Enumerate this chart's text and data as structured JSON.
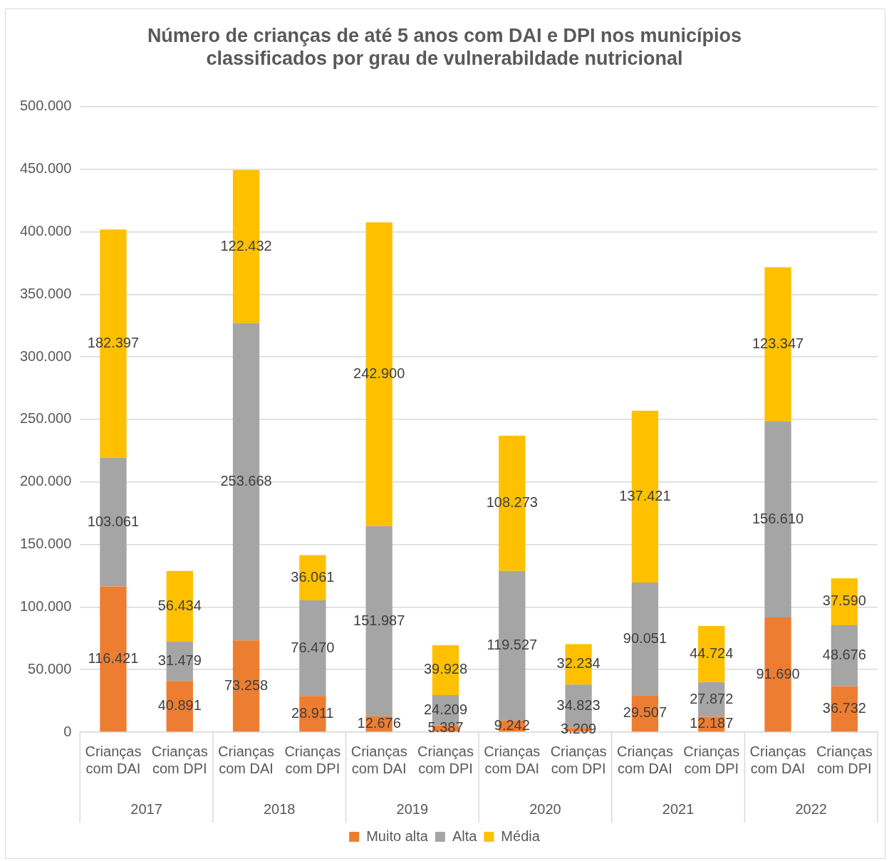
{
  "chart_data": {
    "type": "bar",
    "title": "Número de crianças de até 5 anos com DAI e DPI nos municípios classificados por grau de vulnerabildade nutricional",
    "categories": [
      "Crianças com DAI",
      "Crianças com DPI",
      "Crianças com DAI",
      "Crianças com DPI",
      "Crianças com DAI",
      "Crianças com DPI",
      "Crianças com DAI",
      "Crianças com DPI",
      "Crianças com DAI",
      "Crianças com DPI",
      "Crianças com DAI",
      "Crianças com DPI"
    ],
    "annotations": [
      "2017",
      "2018",
      "2019",
      "2020",
      "2021",
      "2022"
    ],
    "stacked": true,
    "series": [
      {
        "name": "Muito alta",
        "color": "#ed7d31",
        "values": [
          116421,
          40891,
          73258,
          28911,
          12676,
          5387,
          9242,
          3209,
          29507,
          12187,
          91690,
          36732
        ],
        "value_labels": [
          "116.421",
          "40.891",
          "73.258",
          "28.911",
          "12.676",
          "5.387",
          "9.242",
          "3.209",
          "29.507",
          "12.187",
          "91.690",
          "36.732"
        ]
      },
      {
        "name": "Alta",
        "color": "#a5a5a5",
        "values": [
          103061,
          31479,
          253668,
          76470,
          151987,
          24209,
          119527,
          34823,
          90051,
          27872,
          156610,
          48676
        ],
        "value_labels": [
          "103.061",
          "31.479",
          "253.668",
          "76.470",
          "151.987",
          "24.209",
          "119.527",
          "34.823",
          "90.051",
          "27.872",
          "156.610",
          "48.676"
        ]
      },
      {
        "name": "Média",
        "color": "#ffc000",
        "values": [
          182397,
          56434,
          122432,
          36061,
          242900,
          39928,
          108273,
          32234,
          137421,
          44724,
          123347,
          37590
        ],
        "value_labels": [
          "182.397",
          "56.434",
          "122.432",
          "36.061",
          "242.900",
          "39.928",
          "108.273",
          "32.234",
          "137.421",
          "44.724",
          "123.347",
          "37.590"
        ]
      }
    ],
    "ylim": [
      0,
      500000
    ],
    "yticks": [
      0,
      {
        "value": 50000,
        "label": "50.000"
      },
      {
        "value": 100000,
        "label": "100.000"
      },
      {
        "value": 150000,
        "label": "150.000"
      },
      {
        "value": 200000,
        "label": "200.000"
      },
      {
        "value": 250000,
        "label": "250.000"
      },
      {
        "value": 300000,
        "label": "300.000"
      },
      {
        "value": 350000,
        "label": "350.000"
      },
      {
        "value": 400000,
        "label": "400.000"
      },
      {
        "value": 450000,
        "label": "450.000"
      },
      {
        "value": 500000,
        "label": "500.000"
      }
    ],
    "grid": "y",
    "legend": "bottom"
  }
}
